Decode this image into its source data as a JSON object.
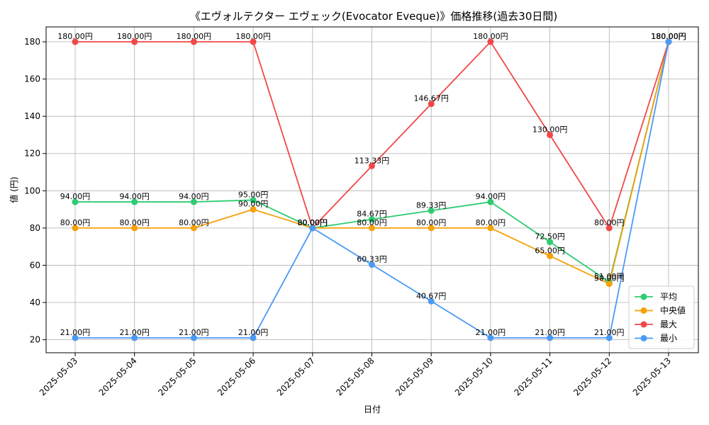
{
  "chart_data": {
    "type": "line",
    "title": "《エヴォルテクター エヴェック(Evocator Eveque)》価格推移(過去30日間)",
    "xlabel": "日付",
    "ylabel": "値 (円)",
    "unit_suffix": "円",
    "categories": [
      "2025-05-03",
      "2025-05-04",
      "2025-05-05",
      "2025-05-06",
      "2025-05-07",
      "2025-05-08",
      "2025-05-09",
      "2025-05-10",
      "2025-05-11",
      "2025-05-12",
      "2025-05-13"
    ],
    "ylim": [
      13,
      188
    ],
    "yticks": [
      20,
      40,
      60,
      80,
      100,
      120,
      140,
      160,
      180
    ],
    "grid": true,
    "legend_position": "bottom-right",
    "series": [
      {
        "name": "平均",
        "color": "#2ecc71",
        "values": [
          94.0,
          94.0,
          94.0,
          95.0,
          80.0,
          84.67,
          89.33,
          94.0,
          72.5,
          51.0,
          180.0
        ]
      },
      {
        "name": "中央値",
        "color": "#f5a10a",
        "values": [
          80.0,
          80.0,
          80.0,
          90.0,
          80.0,
          80.0,
          80.0,
          80.0,
          65.0,
          50.0,
          180.0
        ]
      },
      {
        "name": "最大",
        "color": "#f04848",
        "values": [
          180.0,
          180.0,
          180.0,
          180.0,
          80.0,
          113.33,
          146.67,
          180.0,
          130.0,
          80.0,
          180.0
        ]
      },
      {
        "name": "最小",
        "color": "#4a9af5",
        "values": [
          21.0,
          21.0,
          21.0,
          21.0,
          80.0,
          60.33,
          40.67,
          21.0,
          21.0,
          21.0,
          180.0
        ]
      }
    ]
  }
}
